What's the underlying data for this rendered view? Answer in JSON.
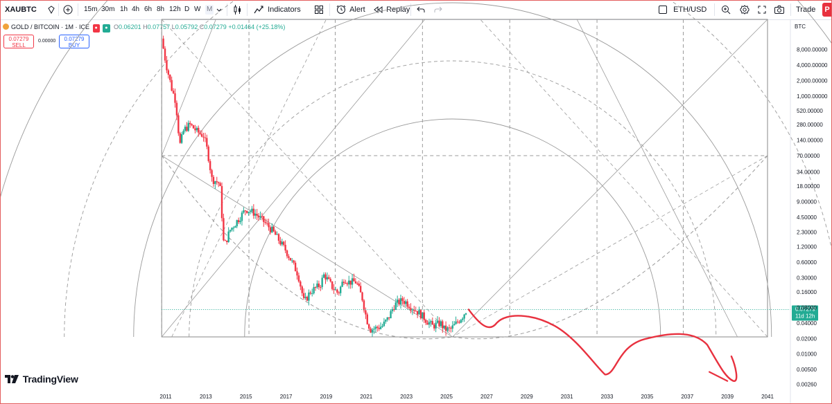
{
  "toolbar": {
    "symbol": "XAUBTC",
    "intervals": [
      "15m",
      "30m",
      "1h",
      "4h",
      "6h",
      "8h",
      "12h",
      "D",
      "W",
      "M"
    ],
    "active_interval": "M",
    "indicators_label": "Indicators",
    "alert_label": "Alert",
    "replay_label": "Replay",
    "compare_symbol": "ETH/USD",
    "trade_label": "Trade",
    "profile_initial": "P"
  },
  "legend": {
    "title": "GOLD / BITCOIN · 1M · ICE",
    "open_label": "O",
    "open": "0.06201",
    "high_label": "H",
    "high": "0.07757",
    "low_label": "L",
    "low": "0.05792",
    "close_label": "C",
    "close": "0.07279",
    "change": "+0.01464 (+25.18%)"
  },
  "trade_buttons": {
    "sell_price": "0.07279",
    "sell_label": "SELL",
    "spread": "0.00000",
    "buy_price": "0.07279",
    "buy_label": "BUY"
  },
  "price_axis": {
    "currency": "BTC",
    "last_price": "0.07279",
    "countdown": "11d 12h"
  },
  "branding": {
    "logo_text": "TradingView"
  },
  "colors": {
    "up": "#22ab94",
    "down": "#f23645",
    "grid_line": "#9a9a9a",
    "annotation": "#e8313f",
    "price_line": "#22ab94",
    "brand_orange": "#f0a33b"
  },
  "chart_data": {
    "type": "candlestick",
    "title": "GOLD / BITCOIN · 1M · ICE",
    "scale": "log",
    "ylabel": "BTC",
    "x_ticks": [
      "2011",
      "2013",
      "2015",
      "2017",
      "2019",
      "2021",
      "2023",
      "2025",
      "2027",
      "2029",
      "2031",
      "2033",
      "2035",
      "2037",
      "2039",
      "2041"
    ],
    "y_ticks": [
      "8,000.00000",
      "4,000.00000",
      "2,000.00000",
      "1,000.00000",
      "520.00000",
      "280.00000",
      "140.00000",
      "70.00000",
      "34.00000",
      "18.00000",
      "9.00000",
      "4.50000",
      "2.30000",
      "1.20000",
      "0.60000",
      "0.30000",
      "0.16000",
      "0.08000",
      "0.04000",
      "0.02000",
      "0.01000",
      "0.00500",
      "0.00260"
    ],
    "series": [
      {
        "name": "XAUBTC monthly close",
        "points": [
          [
            2010.8,
            13000
          ],
          [
            2011.0,
            4500
          ],
          [
            2011.3,
            1400
          ],
          [
            2011.5,
            800
          ],
          [
            2011.7,
            110
          ],
          [
            2011.9,
            220
          ],
          [
            2012.2,
            280
          ],
          [
            2012.6,
            200
          ],
          [
            2012.9,
            170
          ],
          [
            2013.1,
            80
          ],
          [
            2013.3,
            25
          ],
          [
            2013.7,
            20
          ],
          [
            2013.9,
            1.2
          ],
          [
            2014.2,
            2.5
          ],
          [
            2014.7,
            4.5
          ],
          [
            2015.0,
            6.5
          ],
          [
            2015.4,
            5.5
          ],
          [
            2015.8,
            4.0
          ],
          [
            2016.3,
            2.5
          ],
          [
            2016.7,
            1.5
          ],
          [
            2017.0,
            1.0
          ],
          [
            2017.3,
            0.6
          ],
          [
            2017.6,
            0.35
          ],
          [
            2017.9,
            0.1
          ],
          [
            2018.2,
            0.16
          ],
          [
            2018.7,
            0.22
          ],
          [
            2018.9,
            0.35
          ],
          [
            2019.3,
            0.2
          ],
          [
            2019.6,
            0.15
          ],
          [
            2019.9,
            0.3
          ],
          [
            2020.1,
            0.25
          ],
          [
            2020.5,
            0.25
          ],
          [
            2020.8,
            0.12
          ],
          [
            2021.0,
            0.05
          ],
          [
            2021.2,
            0.03
          ],
          [
            2021.5,
            0.032
          ],
          [
            2021.8,
            0.035
          ],
          [
            2022.1,
            0.05
          ],
          [
            2022.4,
            0.09
          ],
          [
            2022.8,
            0.11
          ],
          [
            2023.0,
            0.1
          ],
          [
            2023.3,
            0.08
          ],
          [
            2023.7,
            0.06
          ],
          [
            2024.0,
            0.045
          ],
          [
            2024.3,
            0.035
          ],
          [
            2024.7,
            0.04
          ],
          [
            2024.9,
            0.03
          ],
          [
            2025.2,
            0.03
          ],
          [
            2025.5,
            0.04
          ],
          [
            2025.8,
            0.055
          ],
          [
            2026.0,
            0.0728
          ]
        ]
      }
    ],
    "annotations": [
      {
        "type": "gann_fan_arcs",
        "x_range": [
          2010.8,
          2041.0
        ],
        "center_line_y": 70
      }
    ]
  }
}
